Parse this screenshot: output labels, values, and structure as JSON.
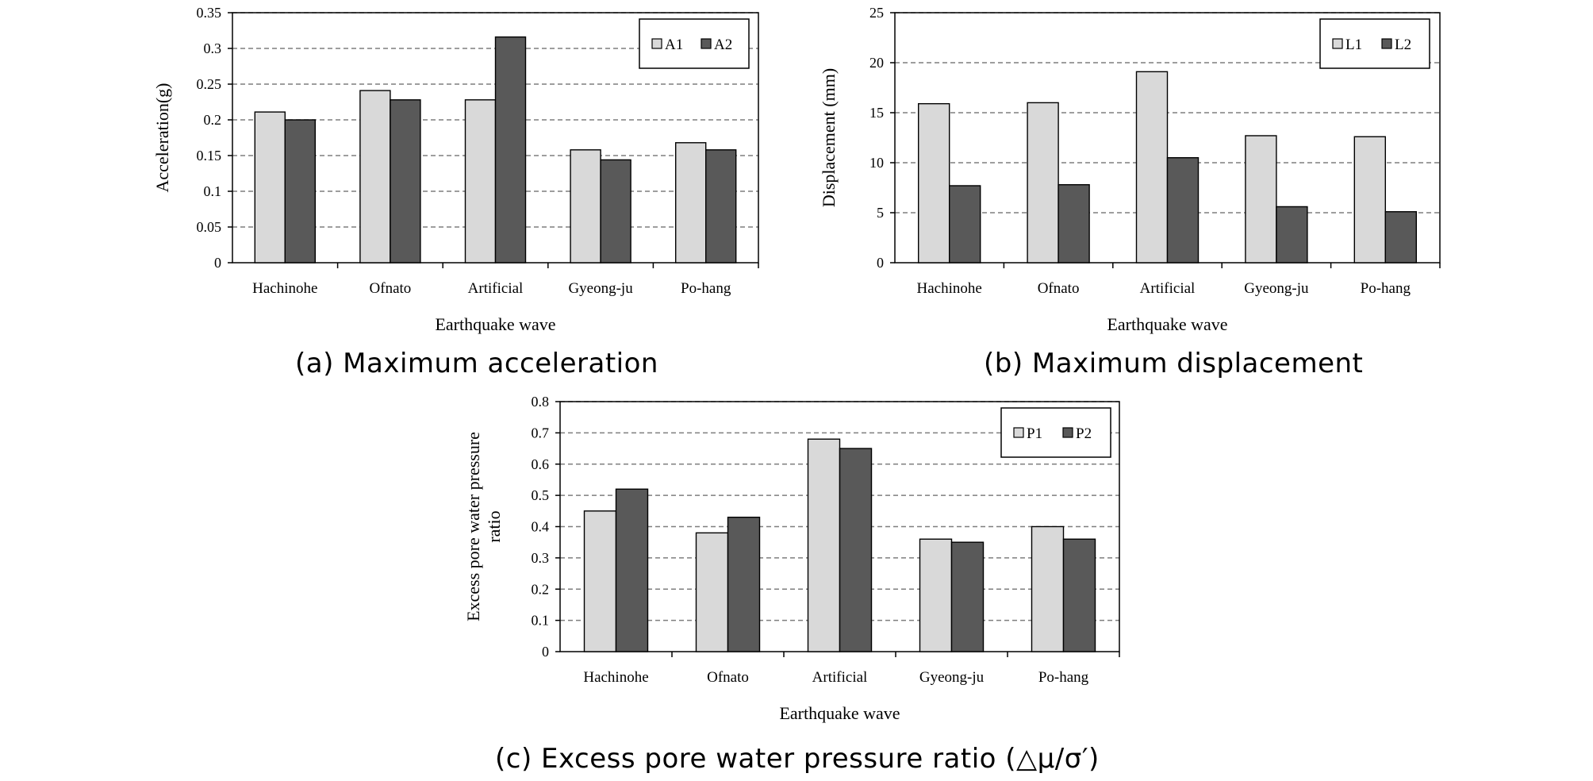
{
  "chart_data": [
    {
      "type": "bar",
      "caption": "(a) Maximum acceleration",
      "categories": [
        "Hachinohe",
        "Ofnato",
        "Artificial",
        "Gyeong-ju",
        "Po-hang"
      ],
      "series": [
        {
          "name": "A1",
          "values": [
            0.211,
            0.241,
            0.228,
            0.158,
            0.168
          ]
        },
        {
          "name": "A2",
          "values": [
            0.2,
            0.228,
            0.316,
            0.144,
            0.158
          ]
        }
      ],
      "ylabel": "Acceleration(g)",
      "xlabel": "Earthquake wave",
      "ylim": [
        0,
        0.35
      ],
      "yticks": [
        "0",
        "0.05",
        "0.1",
        "0.15",
        "0.2",
        "0.25",
        "0.3",
        "0.35"
      ],
      "grid": true,
      "legend_position": "top-right"
    },
    {
      "type": "bar",
      "caption": "(b) Maximum displacement",
      "categories": [
        "Hachinohe",
        "Ofnato",
        "Artificial",
        "Gyeong-ju",
        "Po-hang"
      ],
      "series": [
        {
          "name": "L1",
          "values": [
            15.9,
            16.0,
            19.1,
            12.7,
            12.6
          ]
        },
        {
          "name": "L2",
          "values": [
            7.7,
            7.8,
            10.5,
            5.6,
            5.1
          ]
        }
      ],
      "ylabel": "Displacement (mm)",
      "xlabel": "Earthquake wave",
      "ylim": [
        0,
        25
      ],
      "yticks": [
        "0",
        "5",
        "10",
        "15",
        "20",
        "25"
      ],
      "grid": true,
      "legend_position": "top-right"
    },
    {
      "type": "bar",
      "caption": "(c) Excess pore water pressure ratio (△μ/σ′)",
      "categories": [
        "Hachinohe",
        "Ofnato",
        "Artificial",
        "Gyeong-ju",
        "Po-hang"
      ],
      "series": [
        {
          "name": "P1",
          "values": [
            0.45,
            0.38,
            0.68,
            0.36,
            0.4
          ]
        },
        {
          "name": "P2",
          "values": [
            0.52,
            0.43,
            0.65,
            0.35,
            0.36
          ]
        }
      ],
      "ylabel_lines": [
        "Excess pore water pressure",
        "ratio"
      ],
      "xlabel": "Earthquake wave",
      "ylim": [
        0,
        0.8
      ],
      "yticks": [
        "0",
        "0.1",
        "0.2",
        "0.3",
        "0.4",
        "0.5",
        "0.6",
        "0.7",
        "0.8"
      ],
      "grid": true,
      "legend_position": "top-right"
    }
  ],
  "colors": {
    "series1": "#d9d9d9",
    "series2": "#595959",
    "grid": "#7f7f7f",
    "axis": "#000000"
  }
}
